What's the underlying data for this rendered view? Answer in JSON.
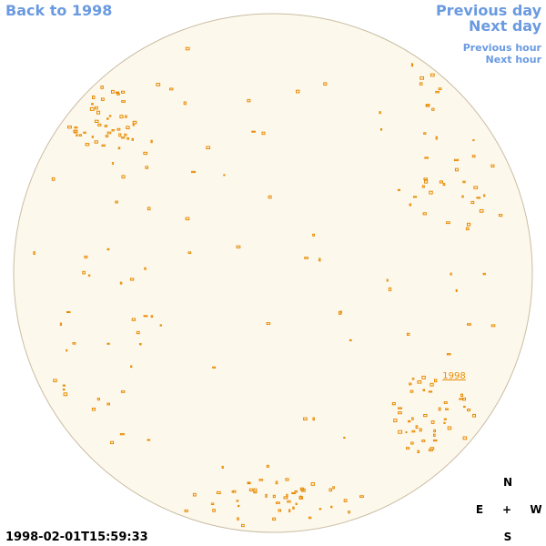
{
  "nav": {
    "back": "Back to 1998",
    "previous_day": "Previous day",
    "next_day": "Next day",
    "previous_hour": "Previous hour",
    "next_hour": "Next hour"
  },
  "region_label": "1998",
  "timestamp": "1998-02-01T15:59:33",
  "compass": {
    "north": "N",
    "east": "E",
    "center": "+",
    "west": "W",
    "south": "S"
  }
}
